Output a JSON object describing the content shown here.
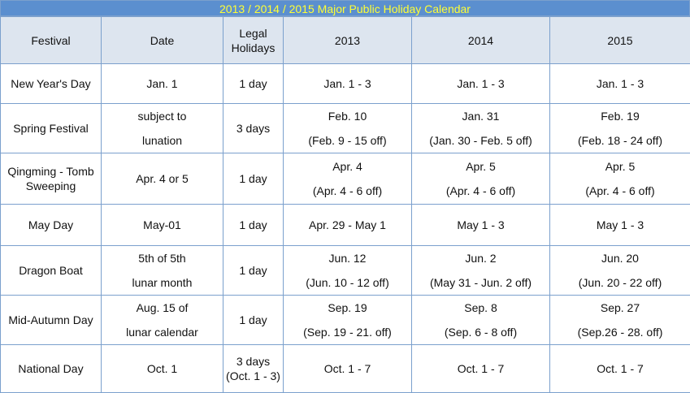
{
  "title": "2013 / 2014 / 2015 Major Public Holiday Calendar",
  "table": {
    "headers": [
      "Festival",
      "Date",
      "Legal Holidays",
      "2013",
      "2014",
      "2015"
    ],
    "rows": [
      [
        "New Year's Day",
        "Jan. 1",
        "1 day",
        "Jan. 1 - 3",
        "Jan. 1 - 3",
        "Jan. 1 - 3"
      ],
      [
        "Spring Festival",
        [
          "subject to",
          "lunation"
        ],
        "3 days",
        [
          "Feb. 10",
          "(Feb. 9 - 15 off)"
        ],
        [
          "Jan. 31",
          "(Jan. 30 - Feb. 5 off)"
        ],
        [
          "Feb. 19",
          "(Feb. 18 - 24 off)"
        ]
      ],
      [
        "Qingming - Tomb Sweeping",
        "Apr. 4 or 5",
        "1 day",
        [
          "Apr. 4",
          "(Apr. 4 - 6 off)"
        ],
        [
          "Apr. 5",
          "(Apr. 4 - 6 off)"
        ],
        [
          "Apr. 5",
          "(Apr. 4 - 6 off)"
        ]
      ],
      [
        "May Day",
        "May-01",
        "1 day",
        "Apr. 29 - May 1",
        "May 1 - 3",
        "May 1 - 3"
      ],
      [
        "Dragon Boat",
        [
          "5th of 5th",
          "lunar month"
        ],
        "1 day",
        [
          "Jun. 12",
          "(Jun. 10 - 12 off)"
        ],
        [
          "Jun. 2",
          "(May 31 - Jun. 2 off)"
        ],
        [
          "Jun. 20",
          "(Jun. 20 - 22 off)"
        ]
      ],
      [
        "Mid-Autumn Day",
        [
          "Aug. 15 of",
          "lunar calendar"
        ],
        "1 day",
        [
          "Sep. 19",
          "(Sep. 19 - 21. off)"
        ],
        [
          "Sep. 8",
          "(Sep. 6 - 8 off)"
        ],
        [
          "Sep. 27",
          "(Sep.26 - 28. off)"
        ]
      ],
      [
        "National Day",
        "Oct. 1",
        "3 days (Oct. 1 - 3)",
        "Oct. 1  - 7",
        "Oct. 1  - 7",
        "Oct. 1  - 7"
      ]
    ]
  }
}
